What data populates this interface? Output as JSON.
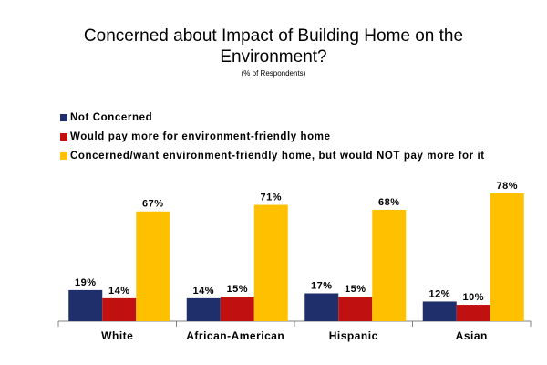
{
  "chart_data": {
    "type": "bar",
    "title": "Concerned about Impact of Building Home on the Environment?",
    "subtitle": "(% of Respondents)",
    "categories": [
      "White",
      "African-American",
      "Hispanic",
      "Asian"
    ],
    "series": [
      {
        "name": "Not Concerned",
        "color": "#1f2f6b",
        "values": [
          19,
          14,
          17,
          12
        ]
      },
      {
        "name": "Would pay more for environment-friendly home",
        "color": "#c0100f",
        "values": [
          14,
          15,
          15,
          10
        ]
      },
      {
        "name": "Concerned/want environment-friendly home, but would NOT pay more for it",
        "color": "#ffc000",
        "values": [
          67,
          71,
          68,
          78
        ]
      }
    ],
    "value_suffix": "%",
    "ylim": [
      0,
      100
    ],
    "grid": false,
    "legend_position": "top-left"
  }
}
